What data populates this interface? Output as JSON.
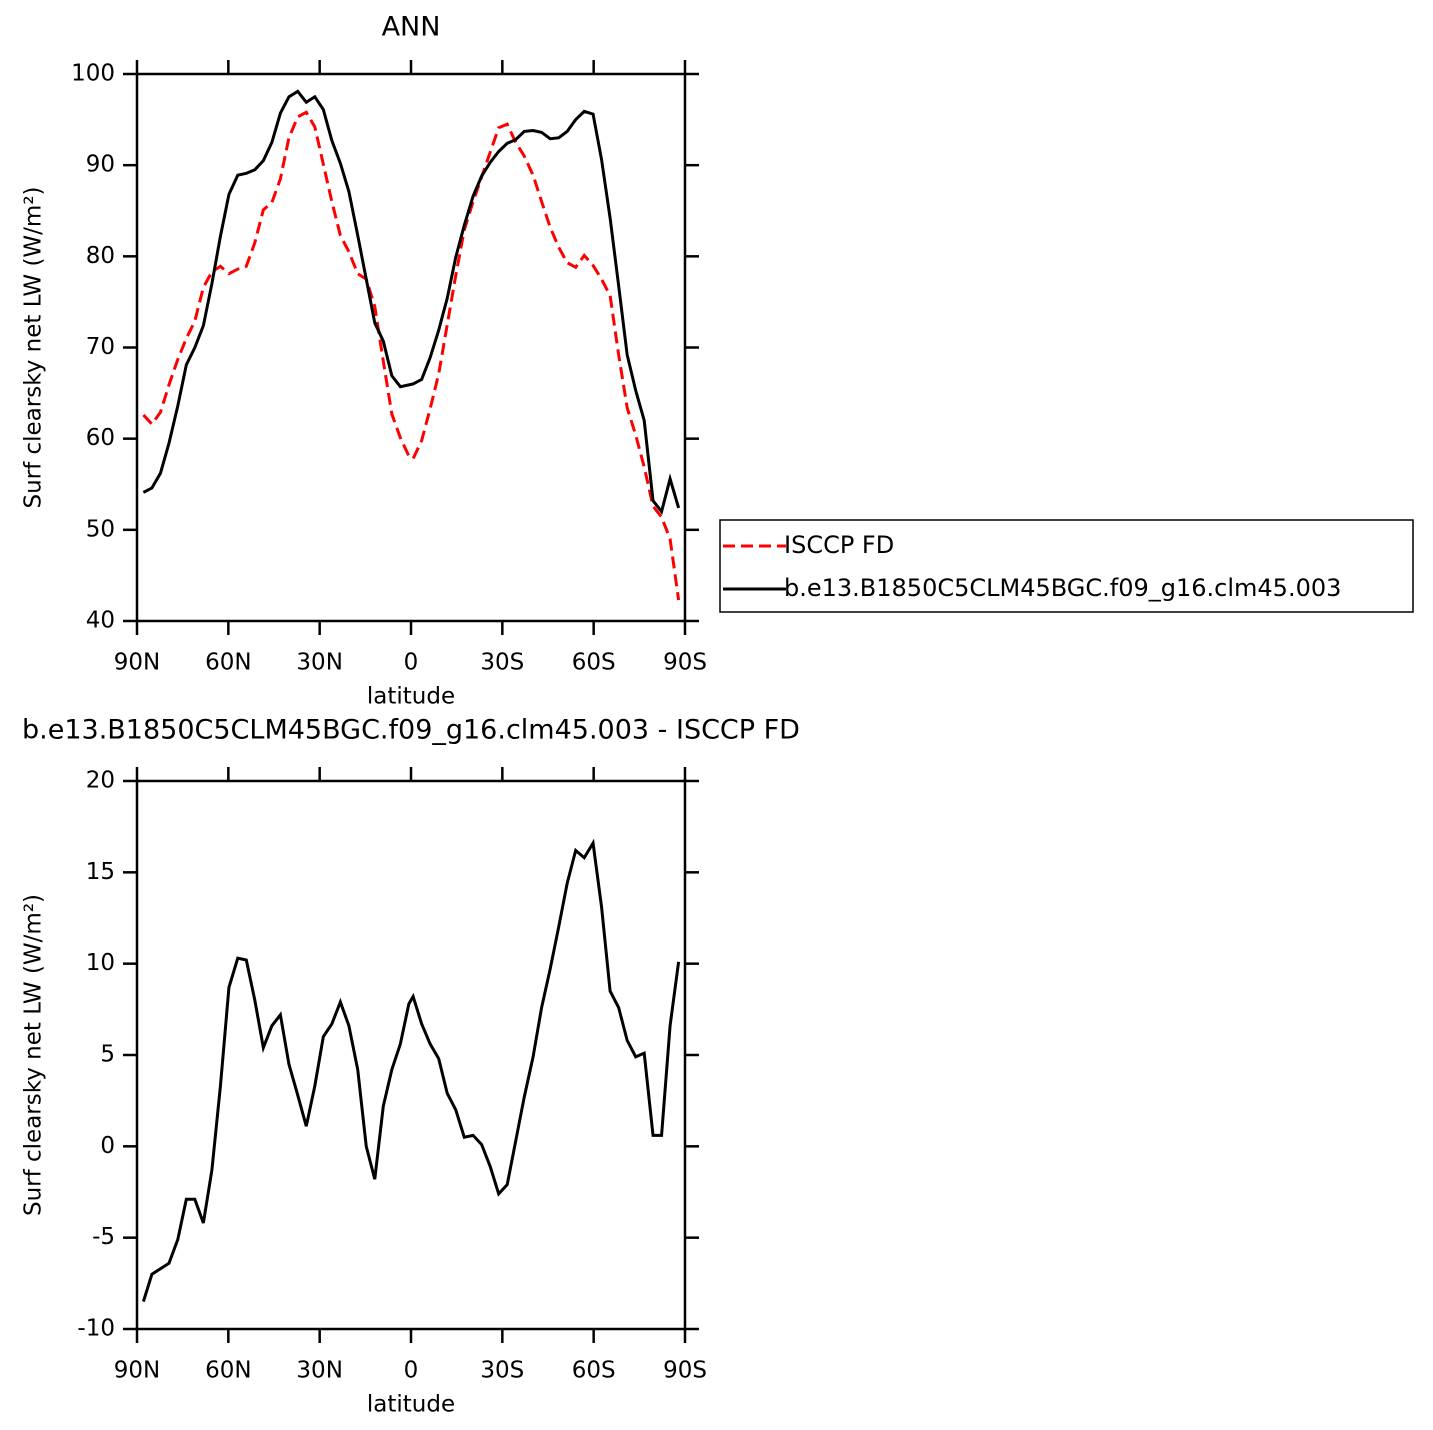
{
  "chart_data": [
    {
      "type": "line",
      "title": "ANN",
      "xlabel": "latitude",
      "ylabel": "Surf clearsky net LW (W/m²)",
      "x": [
        -87.9,
        -85.1,
        -82.3,
        -79.5,
        -76.6,
        -73.8,
        -71.0,
        -68.2,
        -65.4,
        -62.6,
        -59.8,
        -56.9,
        -54.1,
        -51.3,
        -48.5,
        -45.7,
        -42.9,
        -40.1,
        -37.2,
        -34.4,
        -31.6,
        -28.8,
        -26.0,
        -23.2,
        -20.4,
        -17.5,
        -14.7,
        -11.9,
        -9.1,
        -6.3,
        -3.5,
        -0.7,
        0.7,
        3.5,
        6.3,
        9.1,
        11.9,
        14.7,
        17.5,
        20.4,
        23.2,
        26.0,
        28.8,
        31.6,
        34.4,
        37.2,
        40.1,
        42.9,
        45.7,
        48.5,
        51.3,
        54.1,
        56.9,
        59.8,
        62.6,
        65.4,
        68.2,
        71.0,
        73.8,
        76.6,
        79.5,
        82.3,
        85.1,
        87.9
      ],
      "series": [
        {
          "name": "ISCCP FD",
          "color": "#ff0000",
          "line_style": "dashed",
          "values": [
            62.6,
            61.6,
            62.9,
            65.9,
            68.7,
            71.0,
            72.9,
            76.6,
            78.3,
            78.9,
            78.1,
            78.6,
            78.9,
            81.5,
            85.1,
            85.9,
            88.5,
            93.0,
            95.3,
            95.8,
            94.2,
            90.1,
            86.0,
            82.3,
            80.5,
            78.1,
            77.5,
            74.5,
            68.5,
            62.7,
            60.1,
            58.1,
            57.8,
            59.8,
            63.3,
            67.1,
            72.5,
            77.9,
            82.9,
            86.0,
            88.7,
            91.4,
            94.1,
            94.5,
            92.5,
            91.0,
            88.9,
            86.0,
            83.2,
            81.0,
            79.3,
            78.8,
            80.1,
            79.0,
            77.5,
            75.7,
            69.2,
            63.4,
            60.4,
            56.9,
            52.6,
            51.4,
            49.0,
            42.3
          ]
        },
        {
          "name": "b.e13.B1850C5CLM45BGC.f09_g16.clm45.003",
          "color": "#000000",
          "line_style": "solid",
          "values": [
            54.1,
            54.6,
            56.2,
            59.5,
            63.6,
            68.1,
            70.0,
            72.4,
            77.0,
            82.2,
            86.8,
            88.9,
            89.1,
            89.5,
            90.5,
            92.5,
            95.7,
            97.5,
            98.1,
            96.9,
            97.5,
            96.1,
            92.7,
            90.2,
            87.1,
            82.3,
            77.5,
            72.7,
            70.7,
            66.9,
            65.7,
            65.9,
            66.0,
            66.5,
            68.9,
            71.9,
            75.4,
            79.9,
            83.4,
            86.6,
            88.8,
            90.3,
            91.5,
            92.4,
            92.8,
            93.7,
            93.8,
            93.6,
            92.9,
            93.0,
            93.7,
            95.0,
            95.9,
            95.6,
            90.6,
            84.2,
            76.8,
            69.2,
            65.3,
            62.0,
            53.2,
            52.0,
            55.6,
            52.4
          ]
        }
      ],
      "xlim": [
        -90,
        90
      ],
      "xticks": [
        {
          "value": -90,
          "label": "90N"
        },
        {
          "value": -60,
          "label": "60N"
        },
        {
          "value": -30,
          "label": "30N"
        },
        0,
        {
          "value": 30,
          "label": "30S"
        },
        {
          "value": 60,
          "label": "60S"
        },
        {
          "value": 90,
          "label": "90S"
        }
      ],
      "ylim": [
        40,
        100
      ],
      "yticks": [
        40,
        50,
        60,
        70,
        80,
        90,
        100
      ],
      "legend": "right"
    },
    {
      "type": "line",
      "title": "b.e13.B1850C5CLM45BGC.f09_g16.clm45.003 - ISCCP FD",
      "xlabel": "latitude",
      "ylabel": "Surf clearsky net LW (W/m²)",
      "x": [
        -87.9,
        -85.1,
        -82.3,
        -79.5,
        -76.6,
        -73.8,
        -71.0,
        -68.2,
        -65.4,
        -62.6,
        -59.8,
        -56.9,
        -54.1,
        -51.3,
        -48.5,
        -45.7,
        -42.9,
        -40.1,
        -37.2,
        -34.4,
        -31.6,
        -28.8,
        -26.0,
        -23.2,
        -20.4,
        -17.5,
        -14.7,
        -11.9,
        -9.1,
        -6.3,
        -3.5,
        -0.7,
        0.7,
        3.5,
        6.3,
        9.1,
        11.9,
        14.7,
        17.5,
        20.4,
        23.2,
        26.0,
        28.8,
        31.6,
        34.4,
        37.2,
        40.1,
        42.9,
        45.7,
        48.5,
        51.3,
        54.1,
        56.9,
        59.8,
        62.6,
        65.4,
        68.2,
        71.0,
        73.8,
        76.6,
        79.5,
        82.3,
        85.1,
        87.9
      ],
      "color": "#000000",
      "values": [
        -8.5,
        -7.0,
        -6.7,
        -6.4,
        -5.1,
        -2.9,
        -2.9,
        -4.2,
        -1.3,
        3.3,
        8.7,
        10.3,
        10.2,
        8.0,
        5.4,
        6.6,
        7.2,
        4.5,
        2.8,
        1.1,
        3.3,
        6.0,
        6.7,
        7.9,
        6.6,
        4.2,
        0.0,
        -1.8,
        2.2,
        4.2,
        5.6,
        7.8,
        8.2,
        6.7,
        5.6,
        4.8,
        2.9,
        2.0,
        0.5,
        0.6,
        0.1,
        -1.1,
        -2.6,
        -2.1,
        0.3,
        2.7,
        4.9,
        7.6,
        9.7,
        12.0,
        14.4,
        16.2,
        15.8,
        16.6,
        13.1,
        8.5,
        7.6,
        5.8,
        4.9,
        5.1,
        0.6,
        0.6,
        6.6,
        10.1
      ],
      "xlim": [
        -90,
        90
      ],
      "xticks": [
        {
          "value": -90,
          "label": "90N"
        },
        {
          "value": -60,
          "label": "60N"
        },
        {
          "value": -30,
          "label": "30N"
        },
        0,
        {
          "value": 30,
          "label": "30S"
        },
        {
          "value": 60,
          "label": "60S"
        },
        {
          "value": 90,
          "label": "90S"
        }
      ],
      "ylim": [
        -10,
        20
      ],
      "yticks": [
        -10,
        -5,
        0,
        5,
        10,
        15,
        20
      ]
    }
  ]
}
